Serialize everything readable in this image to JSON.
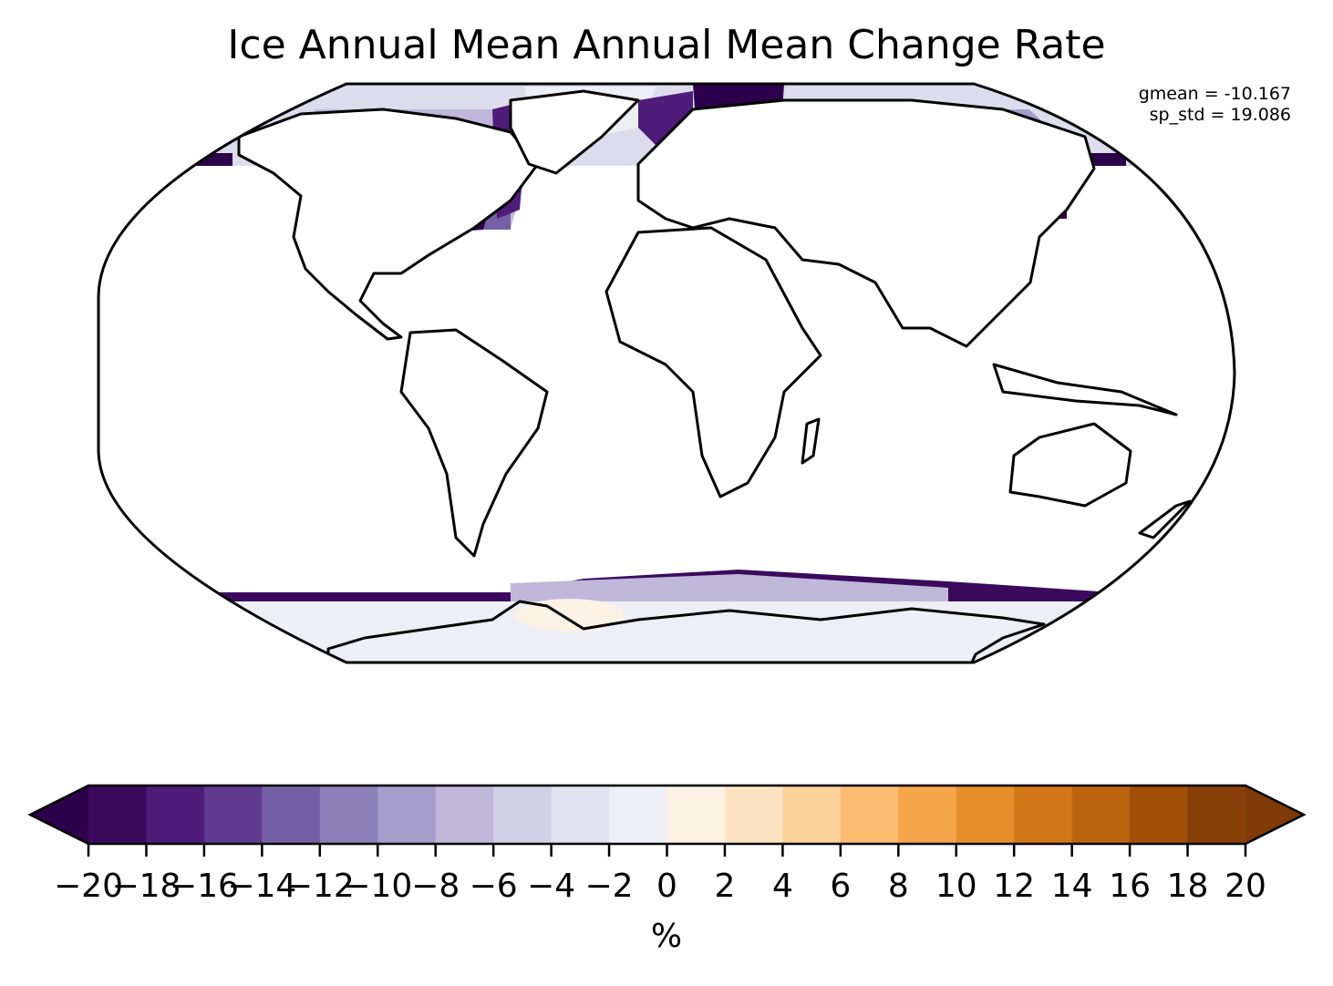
{
  "title": "Ice Annual Mean Annual Mean Change Rate",
  "stats": {
    "gmean": "gmean = -10.167",
    "sp_std": "sp_std = 19.086"
  },
  "colorbar": {
    "label": "%",
    "levels": [
      -20,
      -18,
      -16,
      -14,
      -12,
      -10,
      -8,
      -6,
      -4,
      -2,
      0,
      2,
      4,
      6,
      8,
      10,
      12,
      14,
      16,
      18,
      20
    ],
    "tick_labels": [
      "−20",
      "−18",
      "−16",
      "−14",
      "−12",
      "−10",
      "−8",
      "−6",
      "−4",
      "−2",
      "0",
      "2",
      "4",
      "6",
      "8",
      "10",
      "12",
      "14",
      "16",
      "18",
      "20"
    ],
    "colors": [
      "#2d004b",
      "#3b0a5c",
      "#4f1c7a",
      "#613b8f",
      "#7560a5",
      "#8b80b9",
      "#a59dcb",
      "#bfb8db",
      "#d2d0e7",
      "#e1e1ef",
      "#eeeff4",
      "#fbf1e4",
      "#fde3c2",
      "#fdd19a",
      "#fbbd72",
      "#f5a64a",
      "#e78f2a",
      "#d37818",
      "#bb630d",
      "#a14f08",
      "#873f07",
      "#6d3106"
    ],
    "extend_under_color": "#2d004b",
    "extend_over_color": "#7f3b08"
  },
  "map": {
    "projection": "Robinson",
    "coastline_color": "#000000",
    "land_color": "#ffffff"
  }
}
